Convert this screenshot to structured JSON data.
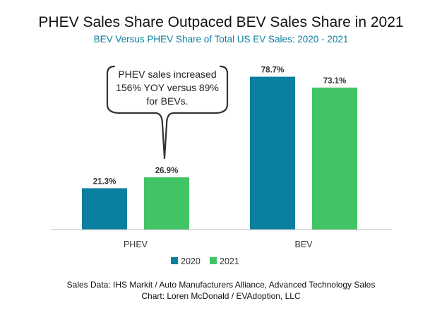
{
  "colors": {
    "s2020": "#0a7f9f",
    "s2021": "#41c463",
    "subtitle": "#0a7f9f",
    "axis": "#bdbdbd"
  },
  "chart_data": {
    "type": "bar",
    "title": "PHEV Sales Share Outpaced BEV Sales Share in 2021",
    "subtitle": "BEV Versus PHEV Share of Total US EV Sales: 2020 - 2021",
    "categories": [
      "PHEV",
      "BEV"
    ],
    "series": [
      {
        "name": "2020",
        "values": [
          21.3,
          78.7
        ],
        "labels": [
          "21.3%",
          "78.7%"
        ]
      },
      {
        "name": "2021",
        "values": [
          26.9,
          73.1
        ],
        "labels": [
          "26.9%",
          "73.1%"
        ]
      }
    ],
    "ylim": [
      0,
      80
    ],
    "grid": false,
    "legend": "bottom",
    "annotation": {
      "lines": [
        "PHEV sales increased",
        "156% YOY versus 89%",
        "for BEVs."
      ]
    }
  },
  "source": {
    "line1": "Sales Data: IHS Markit / Auto Manufacturers Alliance, Advanced Technology Sales",
    "line2": "Chart: Loren McDonald / EVAdoption, LLC"
  }
}
